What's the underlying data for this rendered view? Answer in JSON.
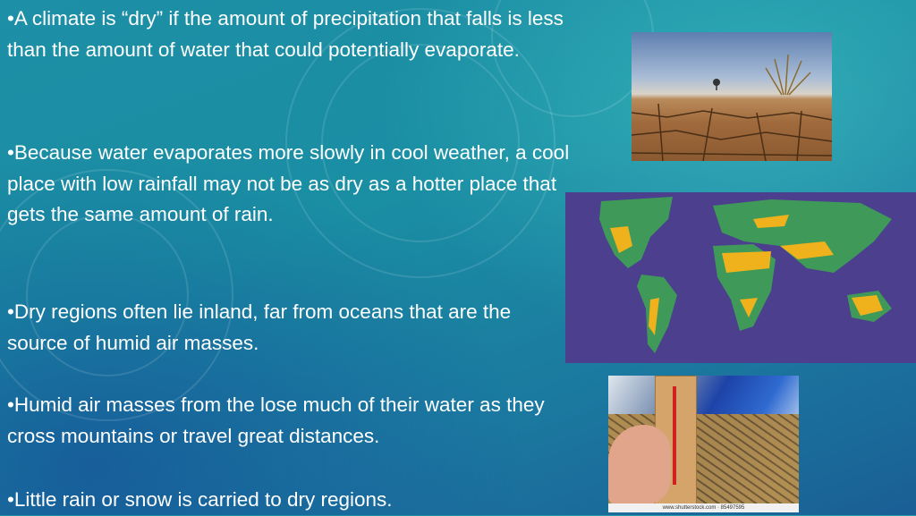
{
  "bullets": [
    "•A climate is “dry” if the amount of precipitation that falls is less than the amount of water that could potentially evaporate.",
    "•Because water evaporates more slowly in cool weather, a cool place with low rainfall may not be as dry as a hotter place that gets the same amount of rain.",
    "•Dry regions often lie inland, far from oceans that are the source of humid air masses.",
    "•Humid air masses from the lose much of their water as they cross mountains or travel great distances.",
    "•Little rain or snow is carried to dry regions."
  ],
  "images": {
    "desert": "cracked-desert-photo",
    "map": "world-dry-regions-map",
    "thermometer": "thermometer-drought-photo",
    "thermometer_watermark": "www.shutterstock.com · 85497595"
  },
  "colors": {
    "map_ocean": "#4b3f8e",
    "map_land": "#3f9a5a",
    "map_dry": "#f0b21c"
  }
}
